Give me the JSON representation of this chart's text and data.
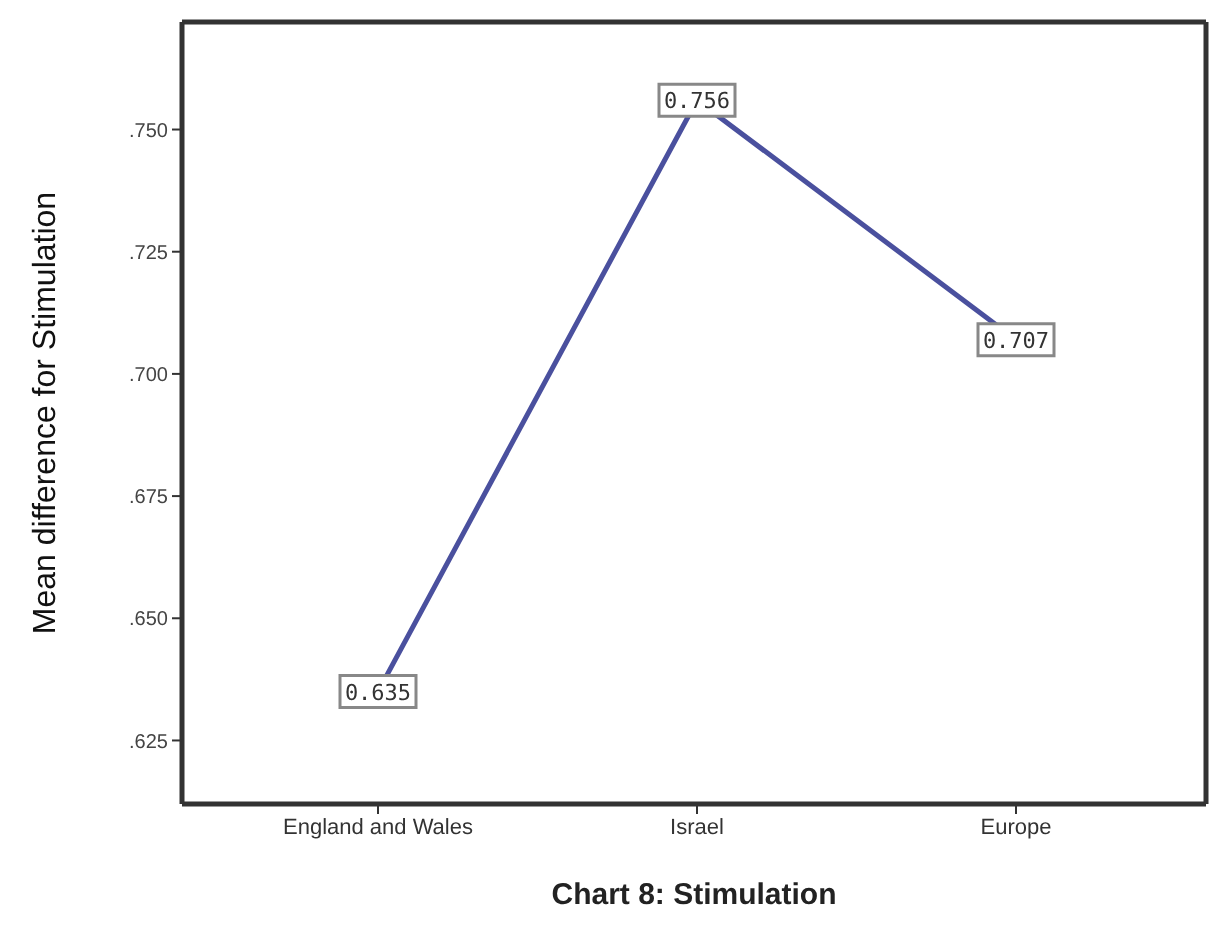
{
  "chart_data": {
    "type": "line",
    "xlabel": "Chart 8: Stimulation",
    "ylabel": "Mean difference for Stimulation",
    "categories": [
      "England and Wales",
      "Israel",
      "Europe"
    ],
    "series": [
      {
        "color": "#4a509e",
        "values": [
          0.635,
          0.756,
          0.707
        ]
      }
    ],
    "ylim": [
      0.612,
      0.772
    ],
    "yticks": [
      {
        "value": 0.625,
        "label": ".625"
      },
      {
        "value": 0.65,
        "label": ".650"
      },
      {
        "value": 0.675,
        "label": ".675"
      },
      {
        "value": 0.7,
        "label": ".700"
      },
      {
        "value": 0.725,
        "label": ".725"
      },
      {
        "value": 0.75,
        "label": ".750"
      }
    ],
    "grid": false,
    "legend": false,
    "marker": "square",
    "line_style": "solid",
    "data_labels": true
  }
}
